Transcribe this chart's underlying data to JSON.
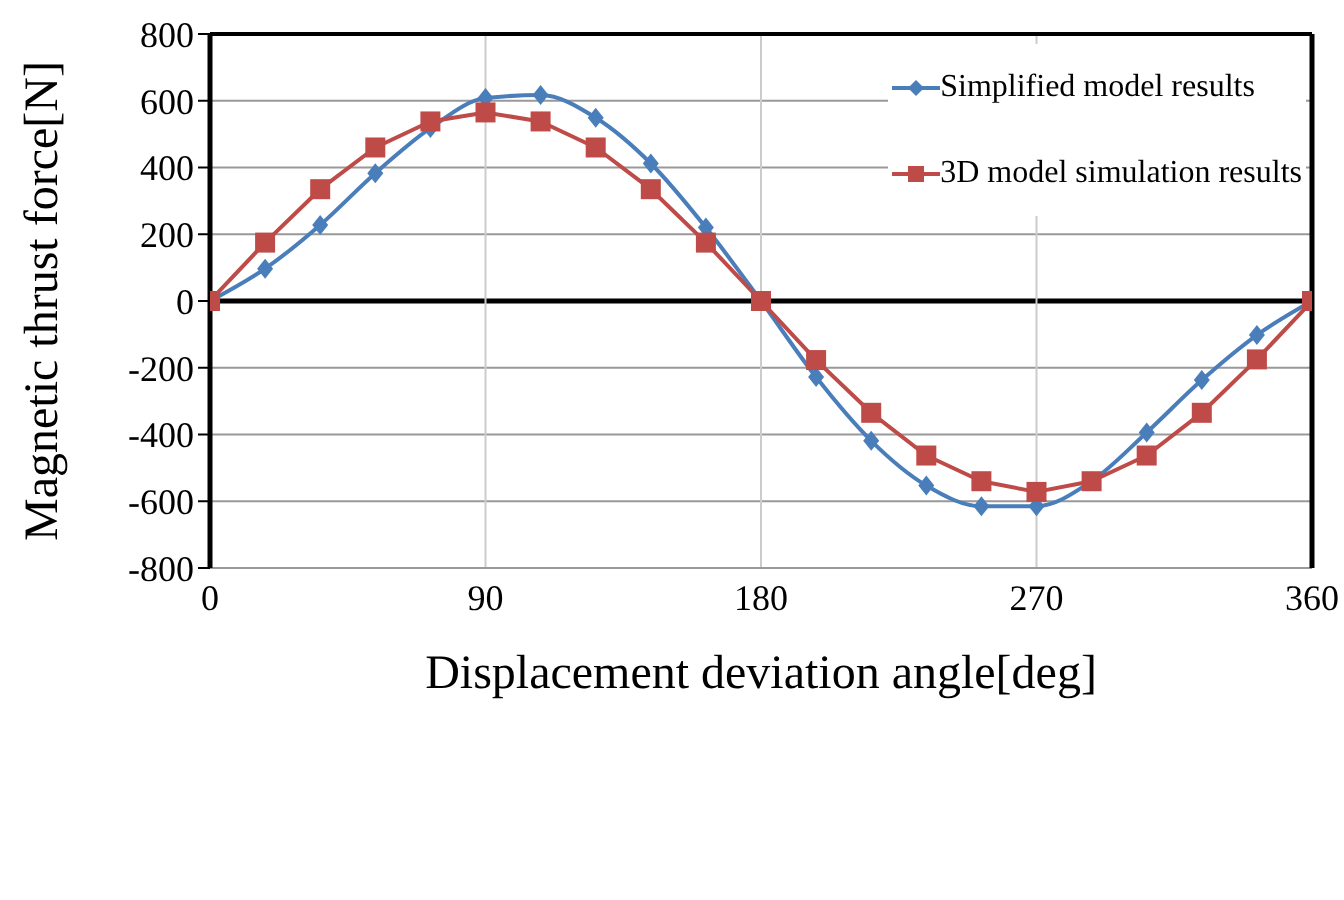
{
  "chart_data": {
    "type": "line",
    "xlabel": "Displacement deviation angle[deg]",
    "ylabel": "Magnetic thrust force[N]",
    "x": [
      0,
      18,
      36,
      54,
      72,
      90,
      108,
      126,
      144,
      162,
      180,
      198,
      216,
      234,
      252,
      270,
      288,
      306,
      324,
      342,
      360
    ],
    "series": [
      {
        "name": "Simplified model results",
        "color": "#4a7ebb",
        "marker": "diamond",
        "values": [
          0,
          97,
          228,
          383,
          518,
          608,
          617,
          549,
          412,
          220,
          0,
          -228,
          -419,
          -553,
          -615,
          -615,
          -540,
          -394,
          -237,
          -102,
          0
        ]
      },
      {
        "name": "3D model simulation results",
        "color": "#be4b48",
        "marker": "square",
        "values": [
          0,
          175,
          335,
          460,
          538,
          565,
          538,
          460,
          335,
          175,
          0,
          -177,
          -335,
          -463,
          -540,
          -572,
          -540,
          -463,
          -335,
          -175,
          0
        ]
      }
    ],
    "xlim": [
      0,
      360
    ],
    "xticks": [
      0,
      90,
      180,
      270,
      360
    ],
    "ylim": [
      -800,
      800
    ],
    "yticks": [
      -800,
      -600,
      -400,
      -200,
      0,
      200,
      400,
      600,
      800
    ],
    "grid": true,
    "legend": "top right"
  }
}
